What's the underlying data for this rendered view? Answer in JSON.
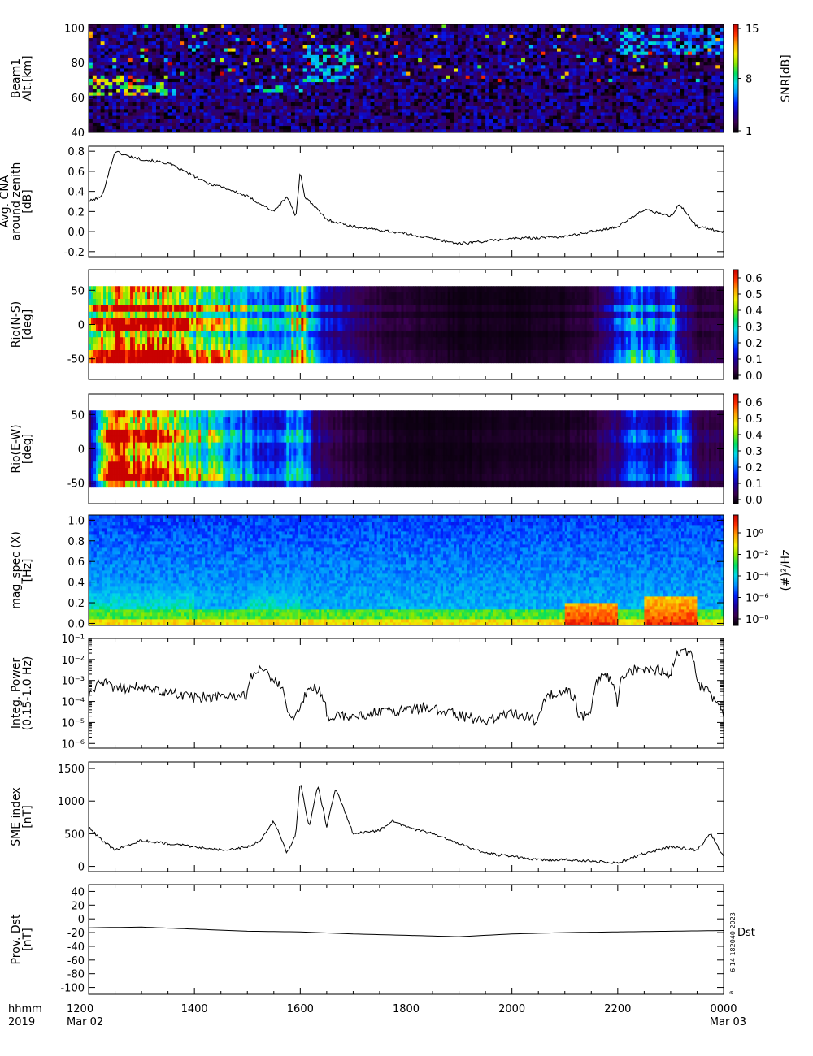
{
  "footer": {
    "time_label": "hhmm",
    "year_label": "2019",
    "x_ticks": [
      "1200",
      "1400",
      "1600",
      "1800",
      "2000",
      "2200",
      "0000"
    ],
    "start_date": "Mar 02",
    "end_date": "Mar 03",
    "stamp": "6 14 182040 2023",
    "stamp_mark": "a"
  },
  "colorbar_colors": [
    "#000000",
    "#3a0050",
    "#1b00a0",
    "#0020ff",
    "#0090ff",
    "#00d8e8",
    "#00e060",
    "#8ce800",
    "#f0f000",
    "#ffa000",
    "#ff3000",
    "#c80000"
  ],
  "chart_data": [
    {
      "type": "heatmap",
      "ylabel": [
        "Beam1",
        "Alt.[km]"
      ],
      "yticks": [
        40,
        60,
        80,
        100
      ],
      "ylim": [
        40,
        102
      ],
      "colorbar": {
        "label": "SNR[dB]",
        "ticks": [
          "15",
          "8",
          "1"
        ]
      },
      "features": [
        {
          "from": "1200",
          "to": "1300",
          "alt_low": 62,
          "alt_high": 72,
          "level": 14
        },
        {
          "from": "1300",
          "to": "1340",
          "alt_low": 62,
          "alt_high": 70,
          "level": 11
        },
        {
          "from": "1500",
          "to": "1600",
          "alt_low": 64,
          "alt_high": 68,
          "level": 9
        },
        {
          "from": "1600",
          "to": "1700",
          "alt_low": 70,
          "alt_high": 90,
          "level": 9
        },
        {
          "from": "2200",
          "to": "0000",
          "alt_low": 85,
          "alt_high": 100,
          "level": 8
        }
      ]
    },
    {
      "type": "line",
      "ylabel": [
        "Avg. CNA",
        "around zenith",
        "[dB]"
      ],
      "yticks": [
        "0.8",
        "0.6",
        "0.4",
        "0.2",
        "0.0",
        "-0.2"
      ],
      "ylim": [
        -0.25,
        0.85
      ],
      "x": [
        "1200",
        "1215",
        "1230",
        "1245",
        "1300",
        "1330",
        "1400",
        "1415",
        "1430",
        "1500",
        "1530",
        "1545",
        "1555",
        "1600",
        "1605",
        "1630",
        "1700",
        "1800",
        "1900",
        "2000",
        "2100",
        "2200",
        "2230",
        "2300",
        "2310",
        "2330",
        "0000"
      ],
      "values": [
        0.3,
        0.35,
        0.8,
        0.75,
        0.72,
        0.68,
        0.55,
        0.48,
        0.45,
        0.35,
        0.2,
        0.35,
        0.15,
        0.6,
        0.35,
        0.12,
        0.05,
        -0.02,
        -0.12,
        -0.07,
        -0.05,
        0.05,
        0.22,
        0.15,
        0.27,
        0.05,
        0.0
      ]
    },
    {
      "type": "heatmap",
      "ylabel": [
        "Rio(N-S)",
        "[deg]"
      ],
      "yticks": [
        -50,
        0,
        50
      ],
      "ylim": [
        -80,
        80
      ],
      "data_ylim": [
        -56,
        56
      ],
      "colorbar": {
        "label": "",
        "ticks": [
          "0.6",
          "0.5",
          "0.4",
          "0.3",
          "0.2",
          "0.1",
          "0.0"
        ],
        "range": [
          0,
          0.65
        ]
      },
      "profile_x": [
        "1200",
        "1215",
        "1230",
        "1300",
        "1330",
        "1400",
        "1430",
        "1500",
        "1530",
        "1545",
        "1600",
        "1615",
        "1630",
        "1700",
        "1730",
        "1800",
        "1900",
        "2000",
        "2100",
        "2130",
        "2200",
        "2215",
        "2230",
        "2250",
        "2300",
        "2310",
        "2330",
        "0000"
      ],
      "profile_v": [
        0.35,
        0.6,
        0.7,
        0.7,
        0.65,
        0.5,
        0.42,
        0.33,
        0.25,
        0.35,
        0.45,
        0.2,
        0.15,
        0.08,
        0.06,
        0.04,
        0.02,
        0.02,
        0.03,
        0.05,
        0.2,
        0.28,
        0.25,
        0.2,
        0.3,
        0.12,
        0.05,
        0.05
      ]
    },
    {
      "type": "heatmap",
      "ylabel": [
        "Rio(E-W)",
        "[deg]"
      ],
      "yticks": [
        -50,
        0,
        50
      ],
      "ylim": [
        -80,
        80
      ],
      "data_ylim": [
        -56,
        56
      ],
      "colorbar": {
        "label": "",
        "ticks": [
          "0.6",
          "0.5",
          "0.4",
          "0.3",
          "0.2",
          "0.1",
          "0.0"
        ],
        "range": [
          0,
          0.65
        ]
      },
      "profile_x": [
        "1200",
        "1210",
        "1220",
        "1230",
        "1300",
        "1330",
        "1400",
        "1430",
        "1500",
        "1530",
        "1545",
        "1600",
        "1615",
        "1630",
        "1700",
        "1730",
        "1800",
        "1900",
        "2000",
        "2100",
        "2130",
        "2200",
        "2215",
        "2230",
        "2250",
        "2300",
        "2310",
        "2330",
        "0000"
      ],
      "profile_v": [
        0.1,
        0.3,
        0.6,
        0.7,
        0.68,
        0.6,
        0.45,
        0.35,
        0.25,
        0.2,
        0.28,
        0.3,
        0.12,
        0.08,
        0.04,
        0.03,
        0.02,
        0.02,
        0.03,
        0.03,
        0.05,
        0.12,
        0.22,
        0.2,
        0.18,
        0.2,
        0.28,
        0.08,
        0.06
      ]
    },
    {
      "type": "heatmap",
      "ylabel": [
        "mag_spec (X)",
        "[Hz]"
      ],
      "yticks": [
        "0.0",
        "0.2",
        "0.4",
        "0.6",
        "0.8",
        "1.0"
      ],
      "ylim": [
        -0.02,
        1.05
      ],
      "colorbar": {
        "label": "(#)²/Hz",
        "ticks": [
          "10⁰",
          "10⁻²",
          "10⁻⁴",
          "10⁻⁶",
          "10⁻⁸"
        ]
      },
      "features": [
        {
          "from": "1200",
          "to": "1400",
          "freq_high": 0.7,
          "level": "10⁻⁴"
        },
        {
          "from": "1500",
          "to": "1600",
          "freq_high": 0.55,
          "level": "10⁻⁴"
        },
        {
          "from": "2100",
          "to": "2200",
          "freq_high": 0.2,
          "level": "10⁰"
        },
        {
          "from": "2230",
          "to": "2330",
          "freq_high": 0.25,
          "level": "10⁰"
        }
      ]
    },
    {
      "type": "line",
      "scale": "log",
      "ylabel": [
        "Integ. Power",
        "(0.15-1.0 Hz)"
      ],
      "yticks": [
        "10⁻¹",
        "10⁻²",
        "10⁻³",
        "10⁻⁴",
        "10⁻⁵",
        "10⁻⁶"
      ],
      "ylim": [
        6e-07,
        0.1
      ],
      "x": [
        "1200",
        "1215",
        "1230",
        "1300",
        "1330",
        "1400",
        "1430",
        "1500",
        "1515",
        "1530",
        "1545",
        "1600",
        "1615",
        "1630",
        "1700",
        "1730",
        "1800",
        "1830",
        "1900",
        "1930",
        "2000",
        "2030",
        "2100",
        "2115",
        "2130",
        "2145",
        "2200",
        "2215",
        "2230",
        "2300",
        "2315",
        "2330",
        "2345",
        "0000"
      ],
      "values": [
        0.00015,
        0.0008,
        0.0004,
        0.0005,
        0.00025,
        0.00015,
        0.00018,
        0.0002,
        0.004,
        0.001,
        2e-05,
        3e-05,
        0.0005,
        2e-05,
        2e-05,
        3e-05,
        4e-05,
        5e-05,
        2e-05,
        1e-05,
        3e-05,
        1e-05,
        0.0004,
        2e-05,
        2e-05,
        0.002,
        1e-05,
        0.003,
        0.004,
        0.002,
        0.03,
        0.0006,
        0.0002,
        3e-05
      ]
    },
    {
      "type": "line",
      "ylabel": [
        "SME index",
        "[nT]"
      ],
      "yticks": [
        "0",
        "500",
        "1000",
        "1500"
      ],
      "ylim": [
        -80,
        1600
      ],
      "x": [
        "1200",
        "1215",
        "1230",
        "1300",
        "1330",
        "1400",
        "1430",
        "1500",
        "1515",
        "1530",
        "1545",
        "1555",
        "1600",
        "1610",
        "1620",
        "1630",
        "1640",
        "1700",
        "1730",
        "1745",
        "1800",
        "1830",
        "1900",
        "1930",
        "2000",
        "2030",
        "2100",
        "2130",
        "2200",
        "2230",
        "2300",
        "2330",
        "2345",
        "0000"
      ],
      "values": [
        600,
        400,
        250,
        400,
        350,
        300,
        250,
        300,
        400,
        700,
        200,
        500,
        1300,
        600,
        1250,
        600,
        1200,
        500,
        550,
        700,
        600,
        500,
        350,
        200,
        150,
        100,
        100,
        80,
        50,
        200,
        300,
        250,
        500,
        150
      ]
    },
    {
      "type": "line",
      "ylabel": [
        "Prov. Dst",
        "[nT]"
      ],
      "yticks": [
        "40",
        "20",
        "0",
        "-20",
        "-40",
        "-60",
        "-80",
        "-100"
      ],
      "ylim": [
        -110,
        50
      ],
      "right_label": "Dst",
      "x": [
        "1200",
        "1300",
        "1400",
        "1500",
        "1600",
        "1700",
        "1800",
        "1900",
        "2000",
        "2100",
        "2200",
        "2300",
        "0000"
      ],
      "values": [
        -13,
        -12,
        -15,
        -18,
        -19,
        -22,
        -24,
        -26,
        -22,
        -20,
        -19,
        -18,
        -17
      ]
    }
  ]
}
